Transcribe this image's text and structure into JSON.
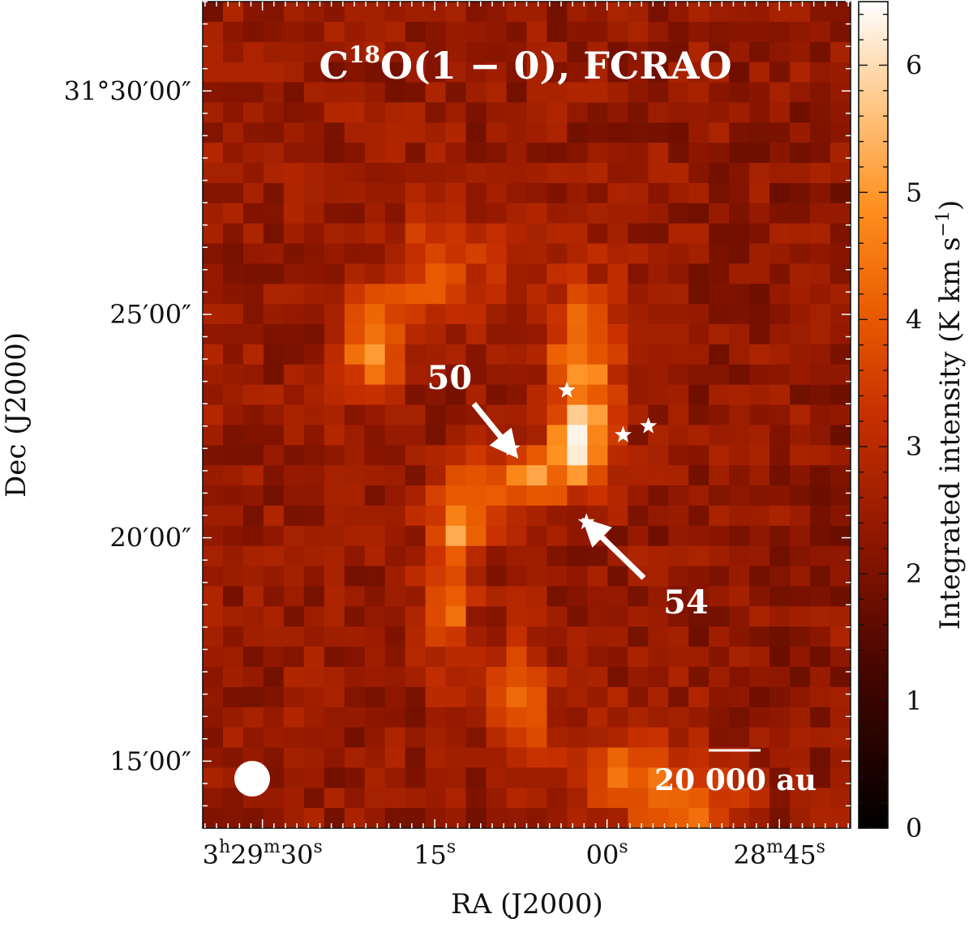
{
  "chart_data": {
    "type": "heatmap",
    "title": "C18O(1 − 0), FCRAO",
    "title_parts": {
      "pre": "C",
      "sup": "18",
      "post": "O(1 − 0), FCRAO"
    },
    "xlabel": "RA (J2000)",
    "ylabel": "Dec (J2000)",
    "colorbar_label": "Integrated intensity (K km s−1)",
    "colorbar_label_parts": {
      "pre": "Integrated intensity (K km s",
      "sup": "−1",
      "post": ")"
    },
    "colormap": "gist_heat",
    "grid": false,
    "zlim": [
      0,
      6.5
    ],
    "colorbar_ticks": [
      "0",
      "1",
      "2",
      "3",
      "4",
      "5",
      "6"
    ],
    "x_ticks": [
      {
        "ra_s": 30,
        "parts": [
          "3",
          "h",
          "29",
          "m",
          "30",
          "s"
        ]
      },
      {
        "ra_s": 15,
        "parts": [
          "",
          "",
          "",
          "",
          "15",
          "s"
        ]
      },
      {
        "ra_s": 0,
        "parts": [
          "",
          "",
          "",
          "",
          "00",
          "s"
        ]
      },
      {
        "ra_s": -15,
        "parts": [
          "",
          "",
          "28",
          "m",
          "45",
          "s"
        ]
      }
    ],
    "y_ticks": [
      {
        "dec_arcmin": 30,
        "label": "31°30′00″"
      },
      {
        "dec_arcmin": 25,
        "label": "25′00″"
      },
      {
        "dec_arcmin": 20,
        "label": "20′00″"
      },
      {
        "dec_arcmin": 15,
        "label": "15′00″"
      }
    ],
    "ra_range_s": [
      35.2,
      -21.2
    ],
    "dec_range_arcmin": [
      13.5,
      32.0
    ],
    "stars": [
      {
        "ra_s": 8.3,
        "dec_arcmin": 22.0
      },
      {
        "ra_s": 3.5,
        "dec_arcmin": 23.3
      },
      {
        "ra_s": -1.4,
        "dec_arcmin": 22.3
      },
      {
        "ra_s": -3.6,
        "dec_arcmin": 22.5
      },
      {
        "ra_s": 1.8,
        "dec_arcmin": 20.35
      }
    ],
    "annotations": [
      {
        "label": "50",
        "arrow_from": {
          "ra_s": 11.6,
          "dec_arcmin": 23.0
        },
        "arrow_to": {
          "ra_s": 8.6,
          "dec_arcmin": 22.05
        }
      },
      {
        "label": "54",
        "arrow_from": {
          "ra_s": -3.2,
          "dec_arcmin": 19.1
        },
        "arrow_to": {
          "ra_s": 1.2,
          "dec_arcmin": 20.2
        }
      }
    ],
    "scale_bar_label": "20 000 au",
    "beam_position": "bottom-left",
    "intensity_blobs": [
      {
        "ra_s": 30,
        "dec_arcmin": 25,
        "peak": 0.7,
        "sigma_ra": 80,
        "sigma_dec": 60
      },
      {
        "ra_s": 20.5,
        "dec_arcmin": 24.3,
        "peak": 2.5,
        "sigma_ra": 1.6,
        "sigma_dec": 0.8
      },
      {
        "ra_s": 16.5,
        "dec_arcmin": 25.8,
        "peak": 1.3,
        "sigma_ra": 2.0,
        "sigma_dec": 0.9
      },
      {
        "ra_s": 11.5,
        "dec_arcmin": 26.0,
        "peak": 0.9,
        "sigma_ra": 2.6,
        "sigma_dec": 0.8
      },
      {
        "ra_s": 2.0,
        "dec_arcmin": 23.8,
        "peak": 2.4,
        "sigma_ra": 2.2,
        "sigma_dec": 1.3
      },
      {
        "ra_s": 2.5,
        "dec_arcmin": 22.1,
        "peak": 3.0,
        "sigma_ra": 1.6,
        "sigma_dec": 0.5
      },
      {
        "ra_s": 7.0,
        "dec_arcmin": 21.3,
        "peak": 2.4,
        "sigma_ra": 2.8,
        "sigma_dec": 0.5
      },
      {
        "ra_s": 12.5,
        "dec_arcmin": 20.5,
        "peak": 2.0,
        "sigma_ra": 2.0,
        "sigma_dec": 0.7
      },
      {
        "ra_s": 13.8,
        "dec_arcmin": 18.7,
        "peak": 1.9,
        "sigma_ra": 1.3,
        "sigma_dec": 1.2
      },
      {
        "ra_s": 7.5,
        "dec_arcmin": 16.3,
        "peak": 1.5,
        "sigma_ra": 2.0,
        "sigma_dec": 1.0
      },
      {
        "ra_s": -2.0,
        "dec_arcmin": 14.7,
        "peak": 1.9,
        "sigma_ra": 3.0,
        "sigma_dec": 0.7
      },
      {
        "ra_s": -8.0,
        "dec_arcmin": 13.9,
        "peak": 1.6,
        "sigma_ra": 3.0,
        "sigma_dec": 0.6
      }
    ],
    "background_level": 1.7,
    "peak_value": 6.5
  }
}
